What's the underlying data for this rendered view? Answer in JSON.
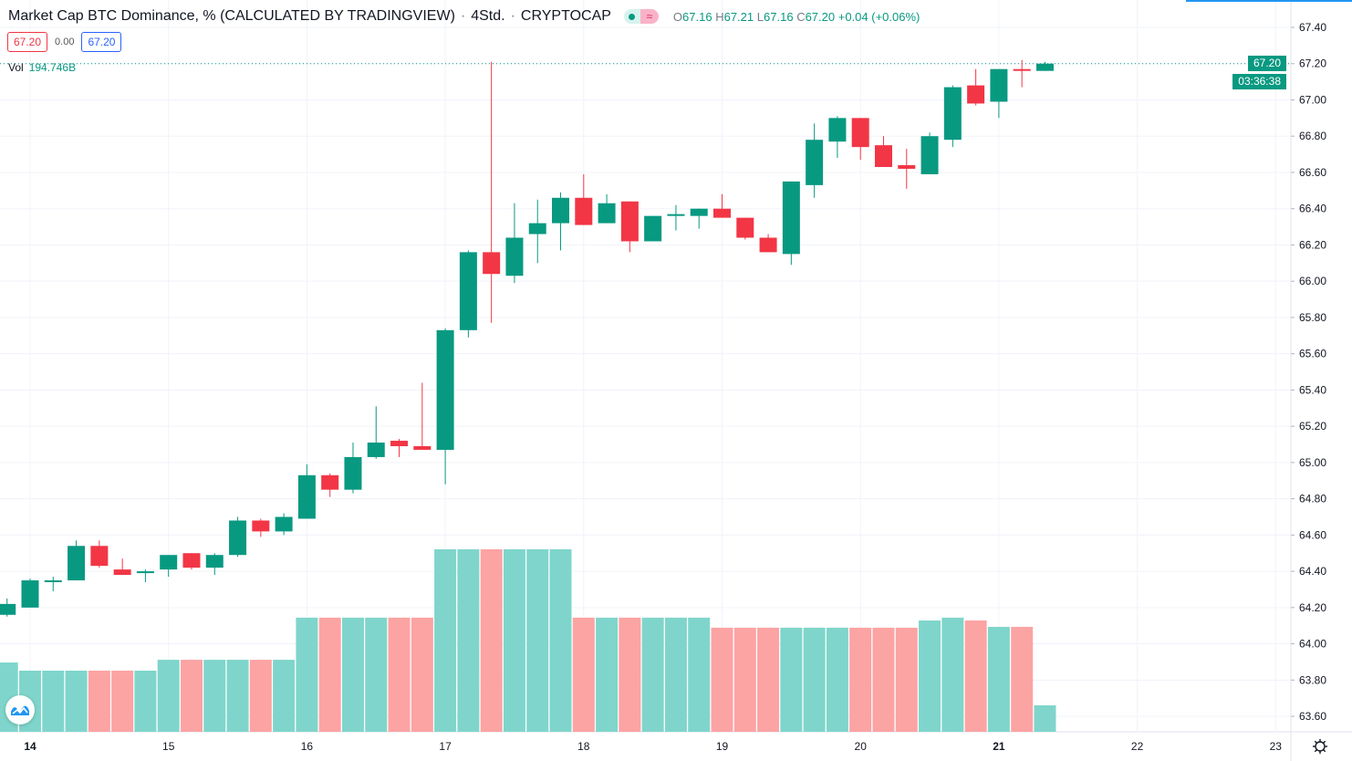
{
  "header": {
    "title": "Market Cap BTC Dominance, % (CALCULATED BY TRADINGVIEW)",
    "interval": "4Std.",
    "exchange": "CRYPTOCAP",
    "badge_icon": "market-status-icon",
    "ohlc": {
      "o_label": "O",
      "o": "67.16",
      "h_label": "H",
      "h": "67.21",
      "l_label": "L",
      "l": "67.16",
      "c_label": "C",
      "c": "67.20",
      "change": "+0.04 (+0.06%)"
    }
  },
  "price_boxes": {
    "bid": "67.20",
    "spread": "0.00",
    "ask": "67.20"
  },
  "volume_legend": {
    "label": "Vol",
    "value": "194.746B"
  },
  "last_price": {
    "value": "67.20",
    "countdown": "03:36:38"
  },
  "colors": {
    "up": "#089981",
    "down": "#f23645",
    "up_volume": "#7fd5cb",
    "down_volume": "#fca3a3",
    "grid": "#f0f3fa",
    "accent": "#2962ff"
  },
  "icons": {
    "logo": "tradingview-logo-icon",
    "settings": "gear-icon"
  },
  "chart_data": {
    "type": "candlestick",
    "title": "Market Cap BTC Dominance, % (CALCULATED BY TRADINGVIEW)",
    "ylim": [
      63.5,
      67.5
    ],
    "y_ticks": [
      "63.60",
      "63.80",
      "64.00",
      "64.20",
      "64.40",
      "64.60",
      "64.80",
      "65.00",
      "65.20",
      "65.40",
      "65.60",
      "65.80",
      "66.00",
      "66.20",
      "66.40",
      "66.60",
      "66.80",
      "67.00",
      "67.20",
      "67.40"
    ],
    "x_ticks": [
      "14",
      "15",
      "16",
      "17",
      "18",
      "19",
      "20",
      "21",
      "22",
      "23"
    ],
    "candles_per_day": 6,
    "grid": true,
    "volume_unit": "B",
    "candles": [
      {
        "o": 64.16,
        "h": 64.25,
        "l": 64.15,
        "c": 64.22,
        "v": 510
      },
      {
        "o": 64.2,
        "h": 64.36,
        "l": 64.2,
        "c": 64.35,
        "v": 450
      },
      {
        "o": 64.34,
        "h": 64.37,
        "l": 64.29,
        "c": 64.35,
        "v": 450
      },
      {
        "o": 64.35,
        "h": 64.57,
        "l": 64.35,
        "c": 64.54,
        "v": 450
      },
      {
        "o": 64.54,
        "h": 64.57,
        "l": 64.42,
        "c": 64.43,
        "v": 450
      },
      {
        "o": 64.41,
        "h": 64.47,
        "l": 64.38,
        "c": 64.38,
        "v": 450
      },
      {
        "o": 64.39,
        "h": 64.41,
        "l": 64.34,
        "c": 64.4,
        "v": 450
      },
      {
        "o": 64.41,
        "h": 64.49,
        "l": 64.37,
        "c": 64.49,
        "v": 530
      },
      {
        "o": 64.5,
        "h": 64.5,
        "l": 64.41,
        "c": 64.42,
        "v": 530
      },
      {
        "o": 64.42,
        "h": 64.5,
        "l": 64.38,
        "c": 64.49,
        "v": 530
      },
      {
        "o": 64.49,
        "h": 64.7,
        "l": 64.48,
        "c": 64.68,
        "v": 530
      },
      {
        "o": 64.68,
        "h": 64.69,
        "l": 64.59,
        "c": 64.62,
        "v": 530
      },
      {
        "o": 64.62,
        "h": 64.72,
        "l": 64.6,
        "c": 64.7,
        "v": 530
      },
      {
        "o": 64.69,
        "h": 64.99,
        "l": 64.69,
        "c": 64.93,
        "v": 840
      },
      {
        "o": 64.93,
        "h": 64.94,
        "l": 64.81,
        "c": 64.85,
        "v": 840
      },
      {
        "o": 64.85,
        "h": 65.11,
        "l": 64.83,
        "c": 65.03,
        "v": 840
      },
      {
        "o": 65.03,
        "h": 65.31,
        "l": 65.02,
        "c": 65.11,
        "v": 840
      },
      {
        "o": 65.12,
        "h": 65.13,
        "l": 65.03,
        "c": 65.09,
        "v": 840
      },
      {
        "o": 65.09,
        "h": 65.44,
        "l": 65.07,
        "c": 65.07,
        "v": 840
      },
      {
        "o": 65.07,
        "h": 65.74,
        "l": 64.88,
        "c": 65.73,
        "v": 1343
      },
      {
        "o": 65.73,
        "h": 66.17,
        "l": 65.69,
        "c": 66.16,
        "v": 1343
      },
      {
        "o": 66.16,
        "h": 67.21,
        "l": 65.77,
        "c": 66.04,
        "v": 1343
      },
      {
        "o": 66.03,
        "h": 66.43,
        "l": 65.99,
        "c": 66.24,
        "v": 1343
      },
      {
        "o": 66.26,
        "h": 66.45,
        "l": 66.1,
        "c": 66.32,
        "v": 1343
      },
      {
        "o": 66.32,
        "h": 66.49,
        "l": 66.17,
        "c": 66.46,
        "v": 1343
      },
      {
        "o": 66.46,
        "h": 66.59,
        "l": 66.31,
        "c": 66.31,
        "v": 840
      },
      {
        "o": 66.32,
        "h": 66.48,
        "l": 66.32,
        "c": 66.43,
        "v": 840
      },
      {
        "o": 66.44,
        "h": 66.44,
        "l": 66.16,
        "c": 66.22,
        "v": 840
      },
      {
        "o": 66.22,
        "h": 66.36,
        "l": 66.22,
        "c": 66.36,
        "v": 840
      },
      {
        "o": 66.36,
        "h": 66.42,
        "l": 66.28,
        "c": 66.37,
        "v": 840
      },
      {
        "o": 66.36,
        "h": 66.4,
        "l": 66.29,
        "c": 66.4,
        "v": 840
      },
      {
        "o": 66.4,
        "h": 66.48,
        "l": 66.35,
        "c": 66.35,
        "v": 766
      },
      {
        "o": 66.35,
        "h": 66.35,
        "l": 66.23,
        "c": 66.24,
        "v": 766
      },
      {
        "o": 66.24,
        "h": 66.26,
        "l": 66.16,
        "c": 66.16,
        "v": 766
      },
      {
        "o": 66.15,
        "h": 66.55,
        "l": 66.09,
        "c": 66.55,
        "v": 766
      },
      {
        "o": 66.53,
        "h": 66.87,
        "l": 66.46,
        "c": 66.78,
        "v": 766
      },
      {
        "o": 66.77,
        "h": 66.91,
        "l": 66.68,
        "c": 66.9,
        "v": 766
      },
      {
        "o": 66.9,
        "h": 66.9,
        "l": 66.67,
        "c": 66.74,
        "v": 766
      },
      {
        "o": 66.75,
        "h": 66.8,
        "l": 66.63,
        "c": 66.63,
        "v": 766
      },
      {
        "o": 66.64,
        "h": 66.73,
        "l": 66.51,
        "c": 66.62,
        "v": 766
      },
      {
        "o": 66.59,
        "h": 66.82,
        "l": 66.59,
        "c": 66.8,
        "v": 819
      },
      {
        "o": 66.78,
        "h": 67.08,
        "l": 66.74,
        "c": 67.07,
        "v": 840
      },
      {
        "o": 67.08,
        "h": 67.17,
        "l": 66.97,
        "c": 66.98,
        "v": 819
      },
      {
        "o": 66.99,
        "h": 67.17,
        "l": 66.9,
        "c": 67.17,
        "v": 772
      },
      {
        "o": 67.17,
        "h": 67.22,
        "l": 67.07,
        "c": 67.16,
        "v": 772
      },
      {
        "o": 67.16,
        "h": 67.21,
        "l": 67.16,
        "c": 67.2,
        "v": 194.746
      }
    ]
  }
}
